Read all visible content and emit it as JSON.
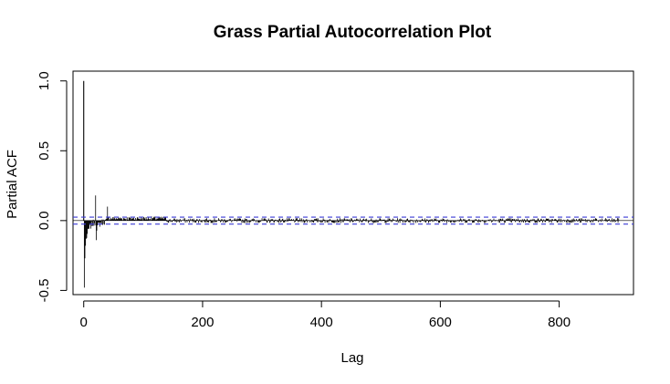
{
  "chart_data": {
    "type": "line",
    "subtype": "pacf-spikes",
    "title": "Grass Partial Autocorrelation Plot",
    "xlabel": "Lag",
    "ylabel": "Partial ACF",
    "xlim": [
      -18,
      925
    ],
    "ylim": [
      -0.53,
      1.07
    ],
    "x_ticks": [
      0,
      200,
      400,
      600,
      800
    ],
    "y_ticks": [
      -0.5,
      0.0,
      0.5,
      1.0
    ],
    "x_tick_labels": [
      "0",
      "200",
      "400",
      "600",
      "800"
    ],
    "y_tick_labels": [
      "-0.5",
      "0.0",
      "0.5",
      "1.0"
    ],
    "confidence_bound": 0.025,
    "confidence_color": "#3b3bd6",
    "zero_line": 0.0,
    "key_lags": [
      {
        "lag": 0,
        "pacf": 1.0
      },
      {
        "lag": 1,
        "pacf": -0.48
      },
      {
        "lag": 2,
        "pacf": -0.27
      },
      {
        "lag": 3,
        "pacf": -0.18
      },
      {
        "lag": 20,
        "pacf": 0.18
      },
      {
        "lag": 21,
        "pacf": -0.14
      },
      {
        "lag": 40,
        "pacf": 0.1
      }
    ],
    "max_lag": 900,
    "grid": false
  }
}
